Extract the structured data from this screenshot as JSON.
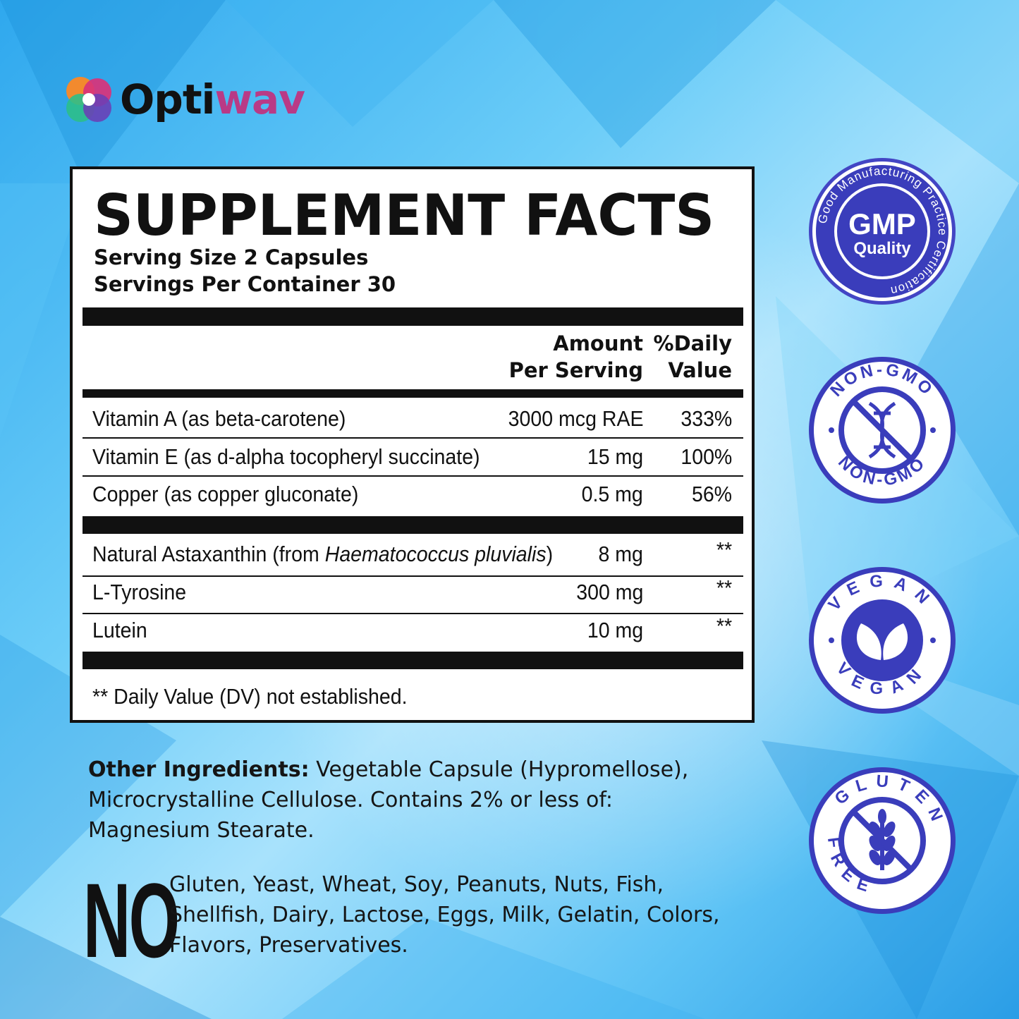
{
  "brand": {
    "name_part1": "Opti",
    "name_part2": "wav"
  },
  "facts": {
    "title": "SUPPLEMENT FACTS",
    "serving_size": "Serving Size 2 Capsules",
    "servings_per_container": "Servings Per Container 30",
    "col_amount": [
      "Amount",
      "Per Serving"
    ],
    "col_dv": [
      "%Daily",
      "Value"
    ],
    "group1": [
      {
        "name": "Vitamin A (as beta-carotene)",
        "amount": "3000 mcg RAE",
        "dv": "333%"
      },
      {
        "name": "Vitamin E (as d-alpha tocopheryl succinate)",
        "amount": "15 mg",
        "dv": "100%"
      },
      {
        "name": "Copper (as copper gluconate)",
        "amount": "0.5 mg",
        "dv": "56%"
      }
    ],
    "group2": [
      {
        "name_prefix": "Natural Astaxanthin (from ",
        "name_italic": "Haematococcus pluvialis",
        "name_suffix": ")",
        "amount": "8 mg",
        "dv": "**"
      },
      {
        "name": "L-Tyrosine",
        "amount": "300 mg",
        "dv": "**"
      },
      {
        "name": "Lutein",
        "amount": "10 mg",
        "dv": "**"
      }
    ],
    "footnote": "** Daily Value (DV) not established."
  },
  "other_ingredients": {
    "label": "Other Ingredients:",
    "text": " Vegetable Capsule (Hypromellose), Microcrystalline Cellulose. Contains 2% or less of: Magnesium Stearate."
  },
  "free_from": {
    "big": "NO",
    "text": "Gluten, Yeast, Wheat, Soy, Peanuts, Nuts, Fish, Shellfish, Dairy, Lactose, Eggs, Milk, Gelatin, Colors, Flavors, Preservatives."
  },
  "badges": {
    "gmp": {
      "ring": "Good Manufacturing Practice Certification",
      "main": "GMP",
      "sub": "Quality"
    },
    "nongmo": {
      "top": "NON-GMO",
      "bottom": "NON-GMO"
    },
    "vegan": {
      "top": "VEGAN",
      "bottom": "VEGAN"
    },
    "gluten": {
      "top": "GLUTEN",
      "bottom": "FREE"
    }
  },
  "colors": {
    "badge_blue": "#3a3dbb",
    "brand_pink": "#b93a86"
  }
}
